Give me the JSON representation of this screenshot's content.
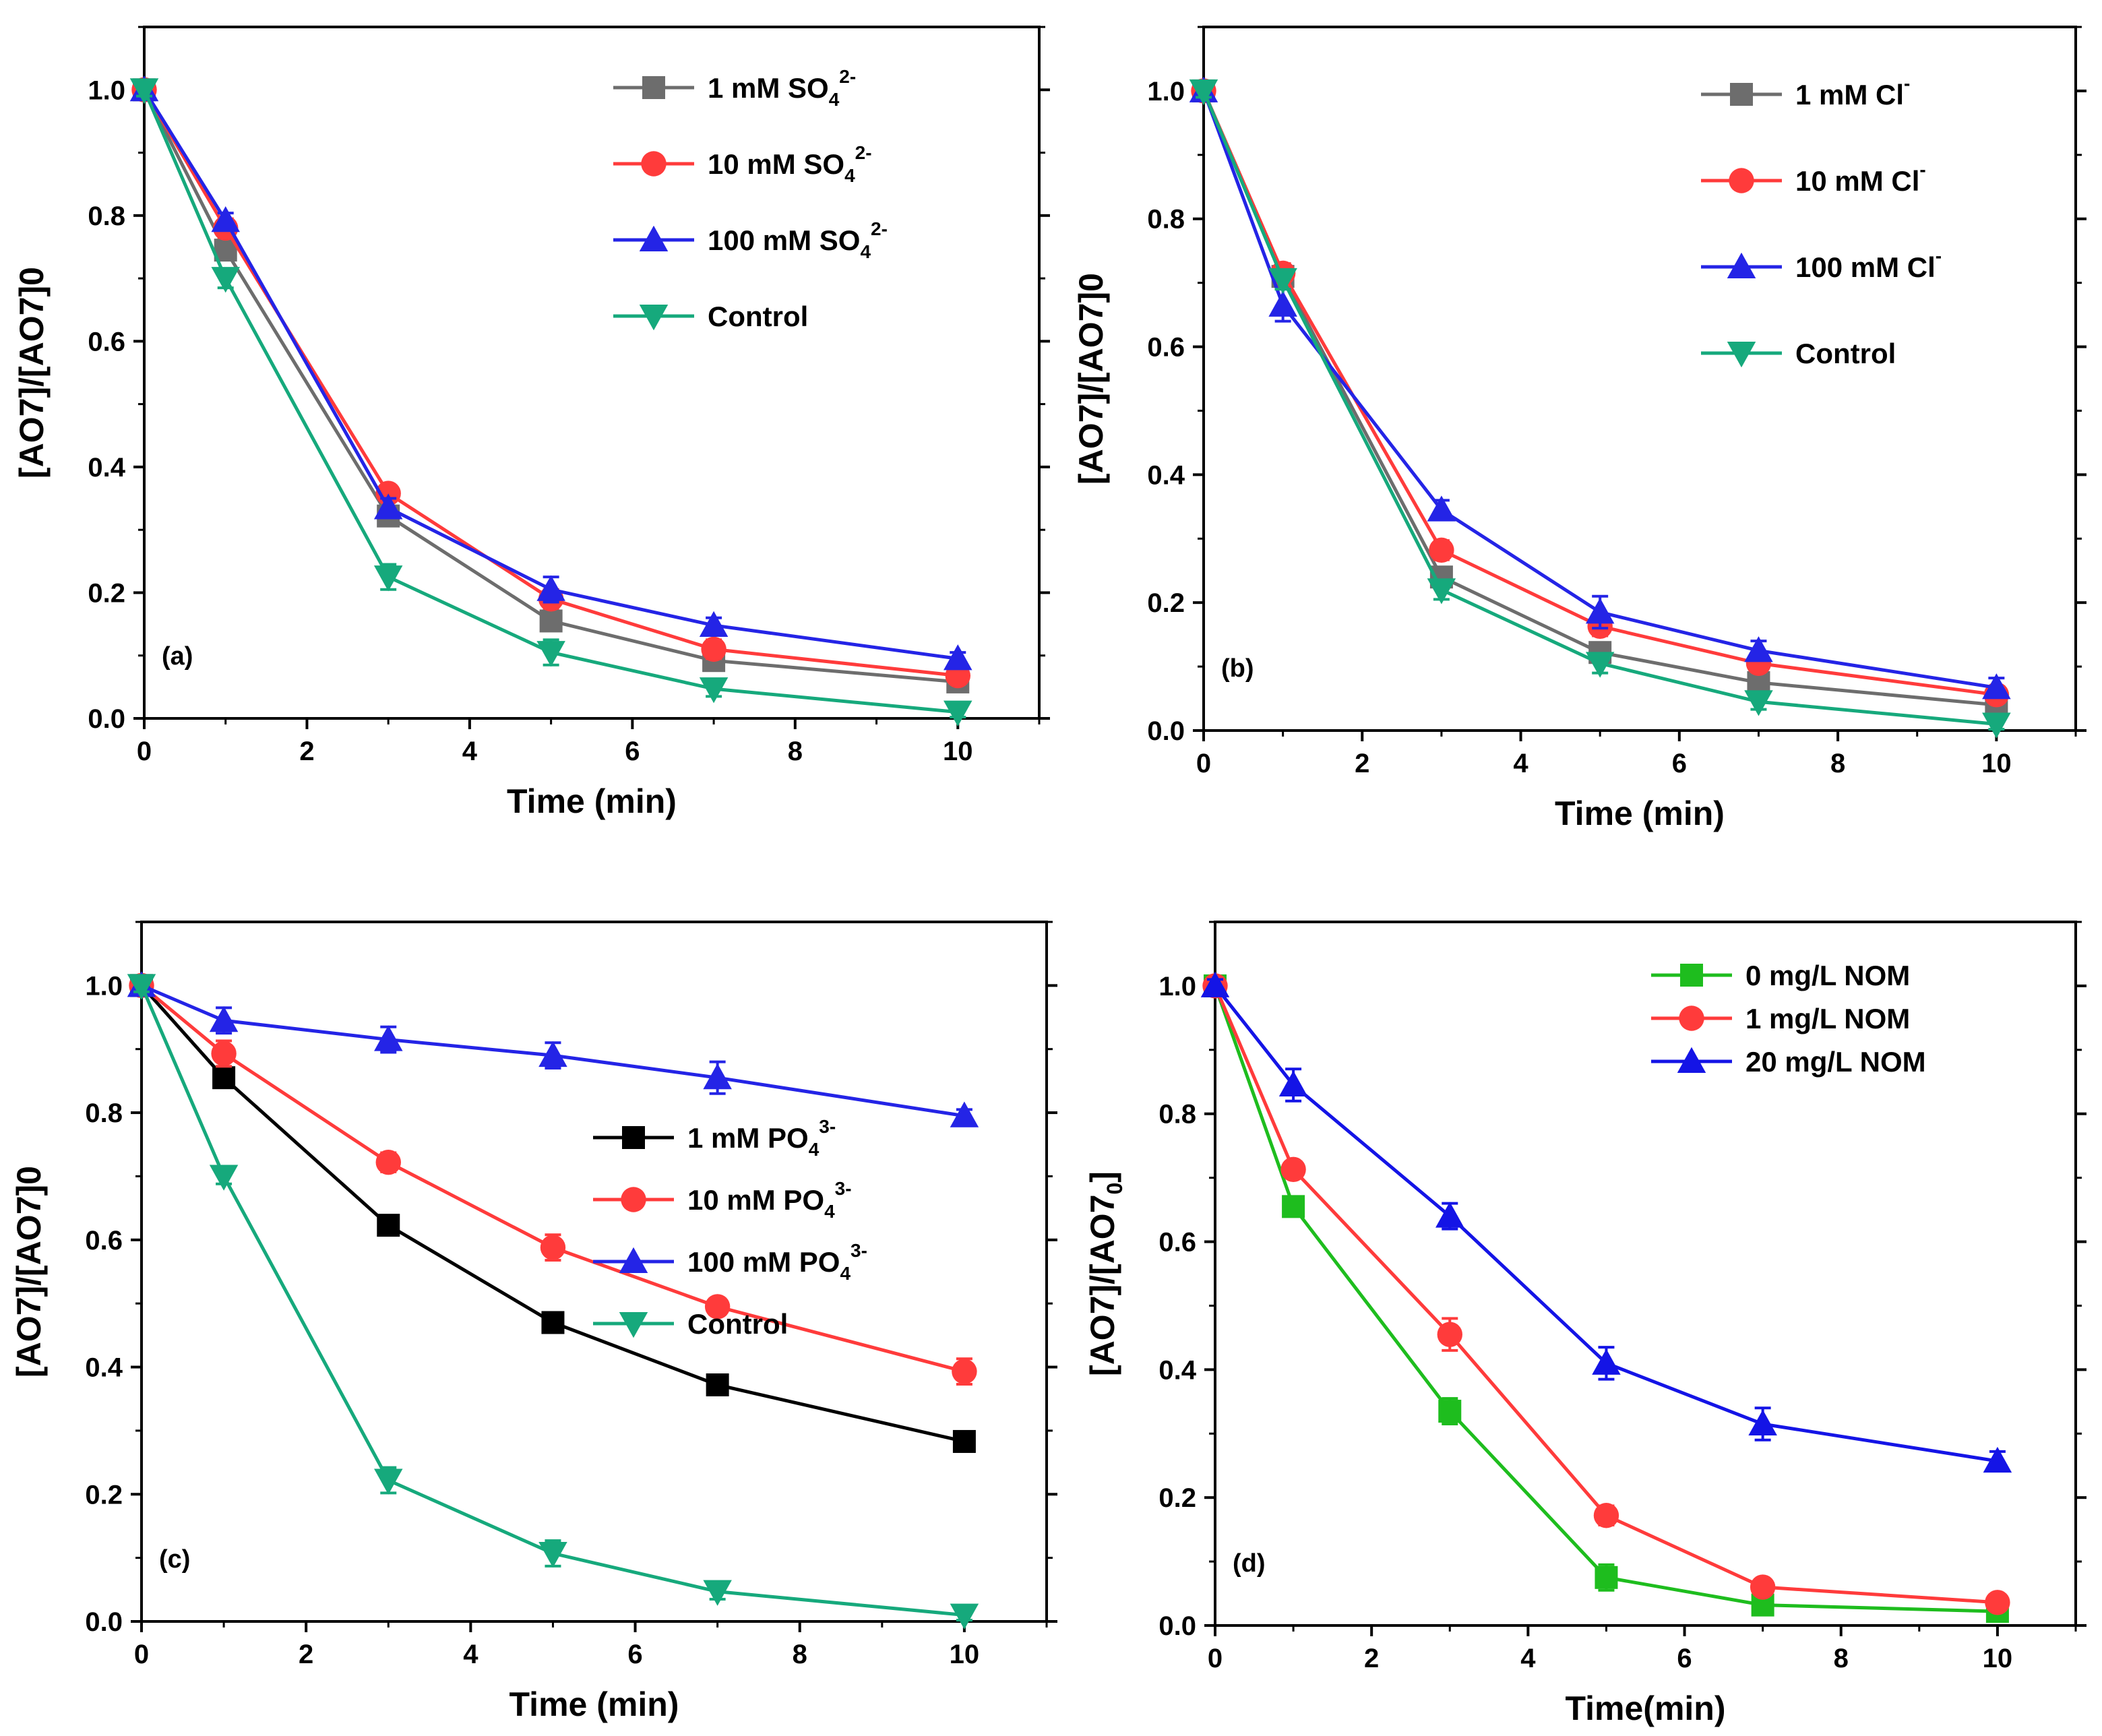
{
  "chart_data": [
    {
      "type": "line",
      "panel_label": "(a)",
      "xlabel": "Time (min)",
      "ylabel": "[AO7]/[AO7]0",
      "xlim": [
        0,
        11
      ],
      "ylim": [
        0,
        1.1
      ],
      "xticks": [
        "0",
        "2",
        "4",
        "6",
        "8",
        "10"
      ],
      "yticks": [
        "0.0",
        "0.2",
        "0.4",
        "0.6",
        "0.8",
        "1.0"
      ],
      "x": [
        0,
        1,
        3,
        5,
        7,
        10
      ],
      "legend_position": "top-right",
      "series": [
        {
          "name": "1 mM SO",
          "sub": "4",
          "sup": "2-",
          "color": "#6d6d6d",
          "marker": "square",
          "values": [
            1.0,
            0.745,
            0.322,
            0.155,
            0.092,
            0.058
          ],
          "errors": [
            0.01,
            0.015,
            0.015,
            0.015,
            0.012,
            0.01
          ]
        },
        {
          "name": "10 mM SO",
          "sub": "4",
          "sup": "2-",
          "color": "#ff3b3b",
          "marker": "circle",
          "values": [
            1.0,
            0.78,
            0.358,
            0.19,
            0.11,
            0.068
          ],
          "errors": [
            0.01,
            0.015,
            0.012,
            0.015,
            0.015,
            0.012
          ]
        },
        {
          "name": "100 mM SO",
          "sub": "4",
          "sup": "2-",
          "color": "#2424e6",
          "marker": "triangle-up",
          "values": [
            1.0,
            0.792,
            0.335,
            0.205,
            0.148,
            0.095
          ],
          "errors": [
            0.01,
            0.012,
            0.015,
            0.02,
            0.012,
            0.01
          ]
        },
        {
          "name": "Control",
          "sub": "",
          "sup": "",
          "color": "#16a97c",
          "marker": "triangle-down",
          "values": [
            1.0,
            0.7,
            0.225,
            0.105,
            0.047,
            0.01
          ],
          "errors": [
            0.01,
            0.015,
            0.02,
            0.02,
            0.012,
            0.008
          ]
        }
      ]
    },
    {
      "type": "line",
      "panel_label": "(b)",
      "xlabel": "Time (min)",
      "ylabel": "[AO7]/[AO7]0",
      "xlim": [
        0,
        11
      ],
      "ylim": [
        0,
        1.1
      ],
      "xticks": [
        "0",
        "2",
        "4",
        "6",
        "8",
        "10"
      ],
      "yticks": [
        "0.0",
        "0.2",
        "0.4",
        "0.6",
        "0.8",
        "1.0"
      ],
      "x": [
        0,
        1,
        3,
        5,
        7,
        10
      ],
      "legend_position": "top-right",
      "series": [
        {
          "name": "1 mM Cl",
          "sub": "",
          "sup": "-",
          "color": "#6d6d6d",
          "marker": "square",
          "values": [
            1.0,
            0.71,
            0.24,
            0.122,
            0.075,
            0.04
          ],
          "errors": [
            0.01,
            0.015,
            0.015,
            0.015,
            0.012,
            0.01
          ]
        },
        {
          "name": "10 mM Cl",
          "sub": "",
          "sup": "-",
          "color": "#ff3b3b",
          "marker": "circle",
          "values": [
            1.0,
            0.715,
            0.282,
            0.163,
            0.105,
            0.056
          ],
          "errors": [
            0.01,
            0.015,
            0.015,
            0.015,
            0.012,
            0.01
          ]
        },
        {
          "name": "100 mM Cl",
          "sub": "",
          "sup": "-",
          "color": "#2424e6",
          "marker": "triangle-up",
          "values": [
            1.0,
            0.665,
            0.345,
            0.185,
            0.125,
            0.067
          ],
          "errors": [
            0.01,
            0.025,
            0.015,
            0.025,
            0.015,
            0.015
          ]
        },
        {
          "name": "Control",
          "sub": "",
          "sup": "",
          "color": "#16a97c",
          "marker": "triangle-down",
          "values": [
            1.0,
            0.705,
            0.22,
            0.105,
            0.045,
            0.01
          ],
          "errors": [
            0.01,
            0.015,
            0.015,
            0.015,
            0.012,
            0.008
          ]
        }
      ]
    },
    {
      "type": "line",
      "panel_label": "(c)",
      "xlabel": "Time (min)",
      "ylabel": "[AO7]/[AO7]0",
      "xlim": [
        0,
        11
      ],
      "ylim": [
        0,
        1.1
      ],
      "xticks": [
        "0",
        "2",
        "4",
        "6",
        "8",
        "10"
      ],
      "yticks": [
        "0.0",
        "0.2",
        "0.4",
        "0.6",
        "0.8",
        "1.0"
      ],
      "x": [
        0,
        1,
        3,
        5,
        7,
        10
      ],
      "legend_position": "center-right",
      "series": [
        {
          "name": "1 mM PO",
          "sub": "4",
          "sup": "3-",
          "color": "#000000",
          "marker": "square",
          "values": [
            1.0,
            0.855,
            0.623,
            0.47,
            0.372,
            0.283
          ],
          "errors": [
            0.01,
            0.015,
            0.015,
            0.012,
            0.015,
            0.01
          ]
        },
        {
          "name": "10 mM PO",
          "sub": "4",
          "sup": "3-",
          "color": "#ff3b3b",
          "marker": "circle",
          "values": [
            1.0,
            0.893,
            0.722,
            0.588,
            0.495,
            0.393
          ],
          "errors": [
            0.01,
            0.02,
            0.015,
            0.02,
            0.012,
            0.02
          ]
        },
        {
          "name": "100 mM PO",
          "sub": "4",
          "sup": "3-",
          "color": "#2424e6",
          "marker": "triangle-up",
          "values": [
            1.0,
            0.945,
            0.915,
            0.89,
            0.855,
            0.795
          ],
          "errors": [
            0.01,
            0.02,
            0.02,
            0.02,
            0.025,
            0.01
          ]
        },
        {
          "name": "Control",
          "sub": "",
          "sup": "",
          "color": "#16a97c",
          "marker": "triangle-down",
          "values": [
            1.0,
            0.7,
            0.222,
            0.107,
            0.047,
            0.01
          ],
          "errors": [
            0.01,
            0.012,
            0.02,
            0.02,
            0.012,
            0.008
          ]
        }
      ]
    },
    {
      "type": "line",
      "panel_label": "(d)",
      "xlabel": "Time(min)",
      "ylabel": "[AO7]/[AO7",
      "ylabel_sub": "0",
      "ylabel_end": "]",
      "xlim": [
        0,
        11
      ],
      "ylim": [
        0,
        1.1
      ],
      "xticks": [
        "0",
        "2",
        "4",
        "6",
        "8",
        "10"
      ],
      "yticks": [
        "0.0",
        "0.2",
        "0.4",
        "0.6",
        "0.8",
        "1.0"
      ],
      "x": [
        0,
        1,
        3,
        5,
        7,
        10
      ],
      "legend_position": "top-right",
      "series": [
        {
          "name": "0 mg/L NOM",
          "sub": "",
          "sup": "",
          "color": "#1ebd1e",
          "marker": "square",
          "values": [
            1.0,
            0.655,
            0.335,
            0.075,
            0.032,
            0.022
          ],
          "errors": [
            0.01,
            0.015,
            0.02,
            0.02,
            0.01,
            0.008
          ]
        },
        {
          "name": "1 mg/L NOM",
          "sub": "",
          "sup": "",
          "color": "#ff3b3b",
          "marker": "circle",
          "values": [
            1.0,
            0.713,
            0.455,
            0.172,
            0.06,
            0.036
          ],
          "errors": [
            0.01,
            0.012,
            0.025,
            0.015,
            0.012,
            0.012
          ]
        },
        {
          "name": "20 mg/L NOM",
          "sub": "",
          "sup": "",
          "color": "#1414e6",
          "marker": "triangle-up",
          "values": [
            1.0,
            0.845,
            0.64,
            0.41,
            0.315,
            0.257
          ],
          "errors": [
            0.01,
            0.025,
            0.02,
            0.025,
            0.025,
            0.015
          ]
        }
      ]
    }
  ]
}
